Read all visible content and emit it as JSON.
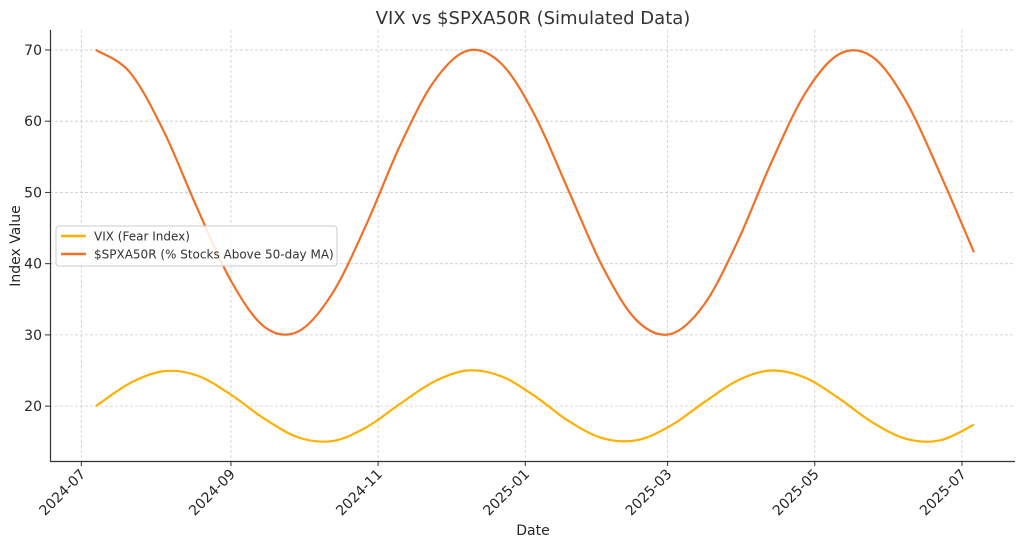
{
  "chart_data": {
    "type": "line",
    "title": "VIX vs $SPXA50R (Simulated Data)",
    "xlabel": "Date",
    "ylabel": "Index Value",
    "grid": true,
    "legend_placement": "center-left",
    "xlim": [
      "2024-06-18",
      "2025-07-23"
    ],
    "ylim": [
      12.3,
      72.8
    ],
    "x_ticks": [
      "2024-07-01",
      "2024-09-01",
      "2024-11-01",
      "2025-01-01",
      "2025-03-01",
      "2025-05-01",
      "2025-07-01"
    ],
    "x_tick_labels": [
      "2024-07",
      "2024-09",
      "2024-11",
      "2025-01",
      "2025-03",
      "2025-05",
      "2025-07"
    ],
    "y_ticks": [
      20,
      30,
      40,
      50,
      60,
      70
    ],
    "x": [
      "2024-07-07",
      "2024-07-21",
      "2024-08-04",
      "2024-08-18",
      "2024-09-01",
      "2024-09-15",
      "2024-09-29",
      "2024-10-13",
      "2024-10-27",
      "2024-11-10",
      "2024-11-24",
      "2024-12-08",
      "2024-12-22",
      "2025-01-05",
      "2025-01-19",
      "2025-02-02",
      "2025-02-16",
      "2025-03-02",
      "2025-03-16",
      "2025-03-30",
      "2025-04-13",
      "2025-04-27",
      "2025-05-11",
      "2025-05-25",
      "2025-06-08",
      "2025-06-22",
      "2025-07-06"
    ],
    "series": [
      {
        "name": "VIX (Fear Index)",
        "color": "#FFB000",
        "values": [
          20,
          23.2,
          24.9,
          24.3,
          21.6,
          18.2,
          15.6,
          15.1,
          17.0,
          20.3,
          23.4,
          25.0,
          24.2,
          21.4,
          17.9,
          15.5,
          15.2,
          17.2,
          20.5,
          23.6,
          25.0,
          24.0,
          21.1,
          17.7,
          15.4,
          15.2,
          17.4
        ]
      },
      {
        "name": "$SPXA50R (% Stocks Above 50-day MA)",
        "color": "#F07028",
        "values": [
          70,
          66.9,
          58.7,
          47.8,
          37.6,
          31.1,
          30.5,
          35.8,
          45.4,
          56.5,
          65.5,
          69.9,
          68.1,
          60.8,
          50.2,
          39.6,
          32.1,
          30.1,
          34.2,
          43.1,
          54.2,
          63.9,
          69.4,
          69.0,
          62.7,
          52.6,
          41.6
        ]
      }
    ]
  }
}
